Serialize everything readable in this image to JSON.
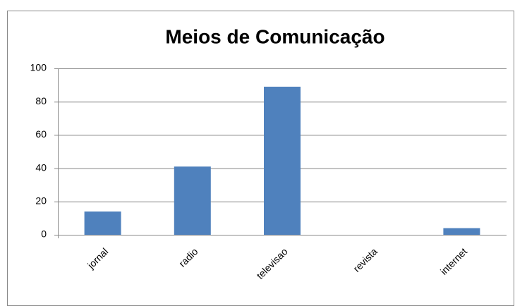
{
  "chart_data": {
    "type": "bar",
    "title": "Meios de Comunicação",
    "categories": [
      "jornal",
      "radio",
      "televisao",
      "revista",
      "internet"
    ],
    "values": [
      14,
      41,
      89,
      0,
      4
    ],
    "color": "#4f81bd",
    "ylim": [
      0,
      100
    ],
    "yticks": [
      0,
      20,
      40,
      60,
      80,
      100
    ],
    "grid": true
  }
}
